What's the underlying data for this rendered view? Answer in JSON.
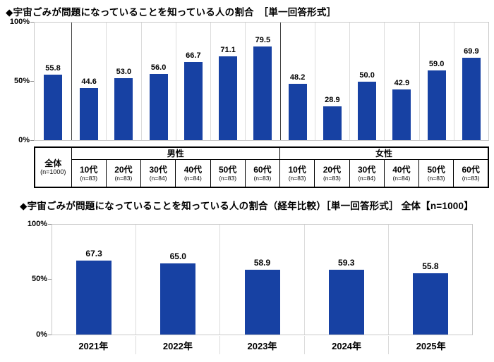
{
  "colors": {
    "bar": "#1741a3",
    "plot_border": "#c9c9c9",
    "divider_light": "#dcdcdc",
    "divider_dark": "#3f3f3f",
    "table_border": "#000000"
  },
  "chart_data": [
    {
      "type": "bar",
      "title": "◆宇宙ごみが問題になっていることを知っている人の割合　［単一回答形式］",
      "categories": [
        "全体",
        "男性10代",
        "男性20代",
        "男性30代",
        "男性40代",
        "男性50代",
        "男性60代",
        "女性10代",
        "女性20代",
        "女性30代",
        "女性40代",
        "女性50代",
        "女性60代"
      ],
      "values": [
        55.8,
        44.6,
        53.0,
        56.0,
        66.7,
        71.1,
        79.5,
        48.2,
        28.9,
        50.0,
        42.9,
        59.0,
        69.9
      ],
      "ylim": [
        0,
        100
      ],
      "ytick_labels": [
        "100%",
        "50%",
        "0%"
      ],
      "grid": false,
      "legend": "none",
      "bar_color": "#1741a3",
      "dark_separators": [
        1,
        7
      ]
    },
    {
      "type": "bar",
      "title": "◆宇宙ごみが問題になっていることを知っている人の割合（経年比較）［単一回答形式］ 全体【n=1000】",
      "categories": [
        "2021年",
        "2022年",
        "2023年",
        "2024年",
        "2025年"
      ],
      "values": [
        67.3,
        65.0,
        58.9,
        59.3,
        55.8
      ],
      "ylim": [
        0,
        100
      ],
      "ytick_labels": [
        "100%",
        "50%",
        "0%"
      ],
      "grid": false,
      "legend": "none",
      "bar_color": "#1741a3",
      "dark_separators": []
    }
  ],
  "demographic_table": {
    "overall": {
      "label": "全体",
      "n": "(n=1000)"
    },
    "groups": [
      {
        "label": "男性",
        "cols": [
          {
            "label": "10代",
            "n": "(n=83)"
          },
          {
            "label": "20代",
            "n": "(n=83)"
          },
          {
            "label": "30代",
            "n": "(n=84)"
          },
          {
            "label": "40代",
            "n": "(n=84)"
          },
          {
            "label": "50代",
            "n": "(n=83)"
          },
          {
            "label": "60代",
            "n": "(n=83)"
          }
        ]
      },
      {
        "label": "女性",
        "cols": [
          {
            "label": "10代",
            "n": "(n=83)"
          },
          {
            "label": "20代",
            "n": "(n=83)"
          },
          {
            "label": "30代",
            "n": "(n=84)"
          },
          {
            "label": "40代",
            "n": "(n=84)"
          },
          {
            "label": "50代",
            "n": "(n=83)"
          },
          {
            "label": "60代",
            "n": "(n=83)"
          }
        ]
      }
    ]
  }
}
